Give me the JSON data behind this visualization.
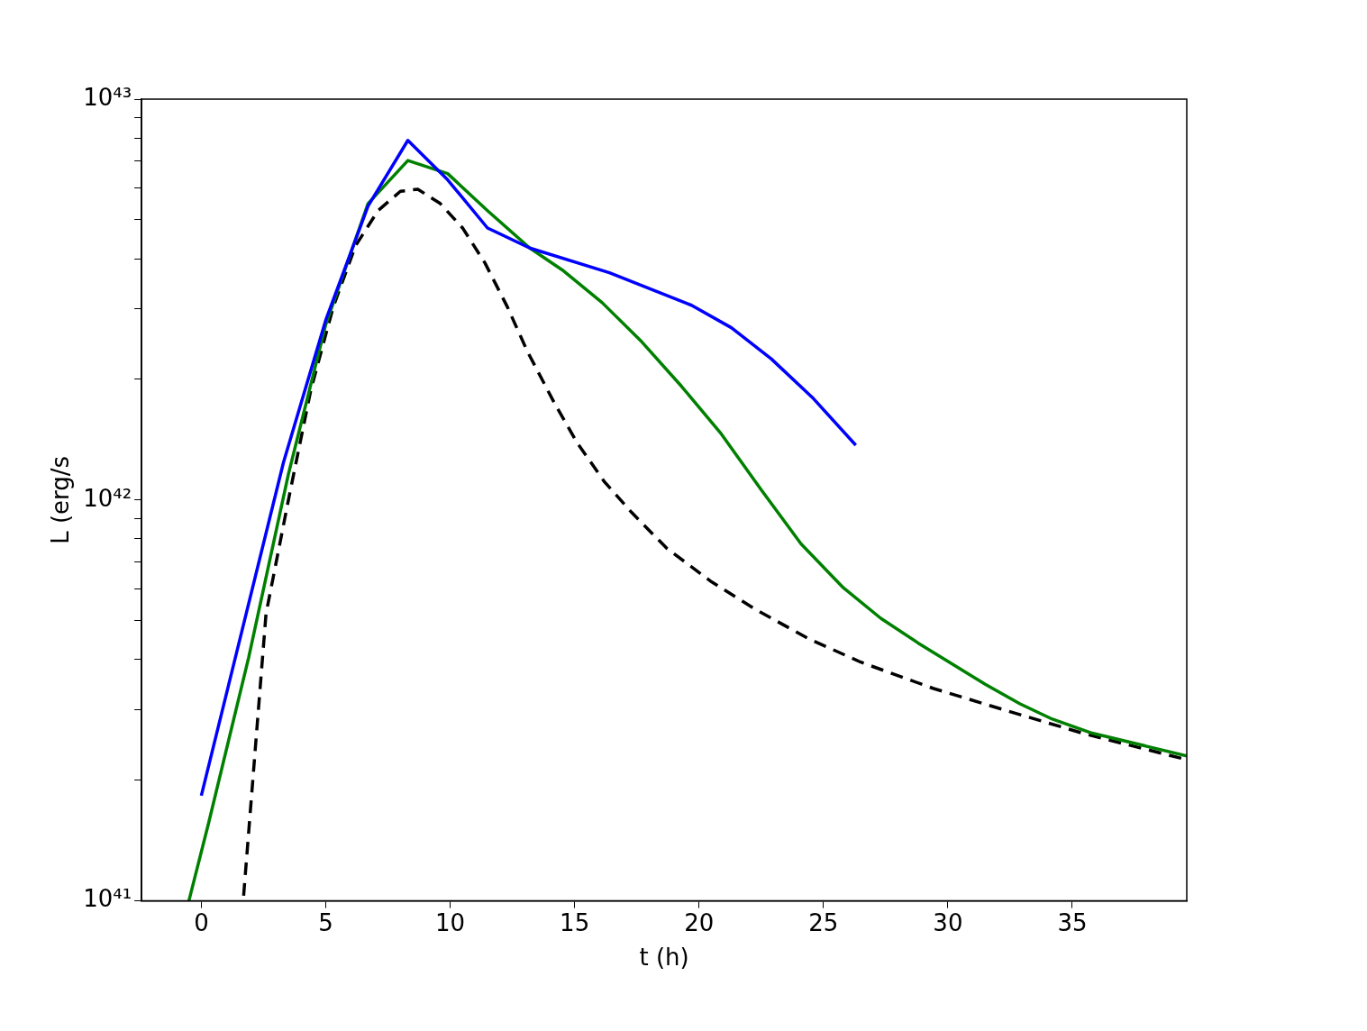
{
  "chart_data": {
    "type": "line",
    "xlabel": "t (h)",
    "ylabel": "L (erg/s",
    "log": "y",
    "grid": false,
    "legend": false,
    "marker": "none",
    "xlim": [
      -2.4,
      39.6
    ],
    "xticks": [
      0,
      5,
      10,
      15,
      20,
      25,
      30,
      35
    ],
    "ylim": [
      1e+41,
      1e+43
    ],
    "yticks": [
      {
        "value": 1e+41,
        "label": "10⁴¹"
      },
      {
        "value": 2e+41,
        "label": null
      },
      {
        "value": 3e+41,
        "label": null
      },
      {
        "value": 4e+41,
        "label": null
      },
      {
        "value": 5e+41,
        "label": null
      },
      {
        "value": 6e+41,
        "label": null
      },
      {
        "value": 7e+41,
        "label": null
      },
      {
        "value": 8e+41,
        "label": null
      },
      {
        "value": 9e+41,
        "label": null
      },
      {
        "value": 1e+42,
        "label": "10⁴²"
      },
      {
        "value": 2e+42,
        "label": null
      },
      {
        "value": 3e+42,
        "label": null
      },
      {
        "value": 4e+42,
        "label": null
      },
      {
        "value": 5e+42,
        "label": null
      },
      {
        "value": 6e+42,
        "label": null
      },
      {
        "value": 7e+42,
        "label": null
      },
      {
        "value": 8e+42,
        "label": null
      },
      {
        "value": 9e+42,
        "label": null
      },
      {
        "value": 1e+43,
        "label": "10⁴³"
      }
    ],
    "series": [
      {
        "color": "#0000ff",
        "line_style": "solid",
        "x": [
          0,
          3.3,
          5,
          6.7,
          8.3,
          9.9,
          11.5,
          13.2,
          16.4,
          19.7,
          21.3,
          22.9,
          24.6,
          26.3
        ],
        "values": [
          1.83e+41,
          1.24e+42,
          2.81e+42,
          5.41e+42,
          7.89e+42,
          6.29e+42,
          4.77e+42,
          4.25e+42,
          3.69e+42,
          3.06e+42,
          2.69e+42,
          2.25e+42,
          1.79e+42,
          1.37e+42
        ]
      },
      {
        "color": "#008000",
        "line_style": "solid",
        "x": [
          -0.5,
          0.3,
          1.9,
          3.5,
          5,
          6.7,
          8.3,
          9.9,
          11.5,
          13.2,
          14.5,
          16.1,
          17.7,
          19.3,
          20.9,
          22.5,
          24.1,
          25.8,
          27.3,
          28.8,
          31.5,
          32.9,
          34.2,
          35.8,
          39.6
        ],
        "values": [
          1e+41,
          1.57e+41,
          4.04e+41,
          1.16e+42,
          2.74e+42,
          5.49e+42,
          7.03e+42,
          6.52e+42,
          5.27e+42,
          4.25e+42,
          3.75e+42,
          3.11e+42,
          2.48e+42,
          1.92e+42,
          1.46e+42,
          1.06e+42,
          7.77e+41,
          6.04e+41,
          5.07e+41,
          4.4e+41,
          3.47e+41,
          3.1e+41,
          2.84e+41,
          2.62e+41,
          2.3e+41
        ]
      },
      {
        "color": "#000000",
        "line_style": "dashed",
        "x": [
          1.7,
          2.6,
          3.5,
          4.4,
          5.3,
          6.2,
          7.1,
          8,
          8.7,
          9.6,
          10.5,
          11.4,
          12.3,
          13.1,
          14.2,
          15.1,
          16.2,
          17.3,
          18.7,
          20.5,
          22.3,
          24.4,
          26.5,
          29.4,
          32.3,
          35.5,
          39.6
        ],
        "values": [
          1.03e+41,
          5.2e+41,
          1e+42,
          1.88e+42,
          3.03e+42,
          4.31e+42,
          5.27e+42,
          5.89e+42,
          5.96e+42,
          5.49e+42,
          4.77e+42,
          3.9e+42,
          3.03e+42,
          2.35e+42,
          1.74e+42,
          1.39e+42,
          1.11e+42,
          9.3e+41,
          7.58e+41,
          6.25e+41,
          5.32e+41,
          4.51e+41,
          3.94e+41,
          3.39e+41,
          2.99e+41,
          2.61e+41,
          2.25e+41
        ]
      }
    ]
  }
}
